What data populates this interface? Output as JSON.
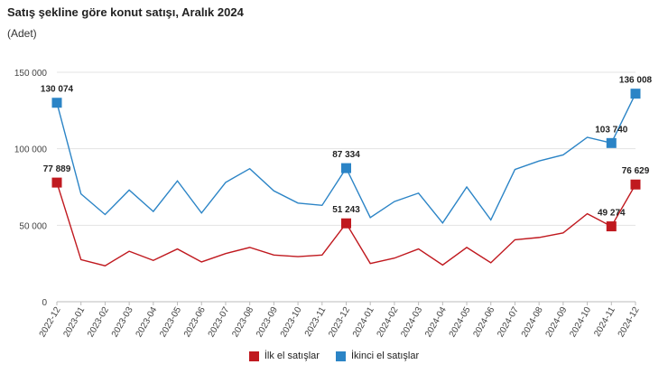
{
  "chart_data": {
    "type": "line",
    "title": "Satış şekline göre konut satışı, Aralık 2024",
    "subtitle": "(Adet)",
    "xlabel": "",
    "ylabel": "",
    "ylim": [
      0,
      150000
    ],
    "y_ticks": [
      "0",
      "50 000",
      "100 000",
      "150 000"
    ],
    "y_tick_values": [
      0,
      50000,
      100000,
      150000
    ],
    "grid": true,
    "legend_position": "bottom",
    "categories": [
      "2022-12",
      "2023-01",
      "2023-02",
      "2023-03",
      "2023-04",
      "2023-05",
      "2023-06",
      "2023-07",
      "2023-08",
      "2023-09",
      "2023-10",
      "2023-11",
      "2023-12",
      "2024-01",
      "2024-02",
      "2024-03",
      "2024-04",
      "2024-05",
      "2024-06",
      "2024-07",
      "2024-08",
      "2024-09",
      "2024-10",
      "2024-11",
      "2024-12"
    ],
    "series": [
      {
        "name": "İlk el satışlar",
        "color": "#c0191f",
        "values": [
          77889,
          27500,
          23500,
          33000,
          27000,
          34500,
          26000,
          31500,
          35500,
          30500,
          29500,
          30500,
          51243,
          25000,
          28500,
          34500,
          24000,
          35500,
          25500,
          40500,
          42000,
          45000,
          57500,
          49274,
          76629
        ],
        "labels": {
          "0": "77 889",
          "12": "51 243",
          "23": "49 274",
          "24": "76 629"
        }
      },
      {
        "name": "İkinci el satışlar",
        "color": "#2b84c6",
        "values": [
          130074,
          70500,
          57000,
          73000,
          59000,
          79000,
          58000,
          78000,
          87000,
          72500,
          64500,
          63000,
          87334,
          55000,
          65500,
          71000,
          51500,
          75000,
          53500,
          86500,
          92000,
          96000,
          107500,
          103740,
          136008
        ],
        "labels": {
          "0": "130 074",
          "12": "87 334",
          "23": "103 740",
          "24": "136 008"
        }
      }
    ]
  }
}
